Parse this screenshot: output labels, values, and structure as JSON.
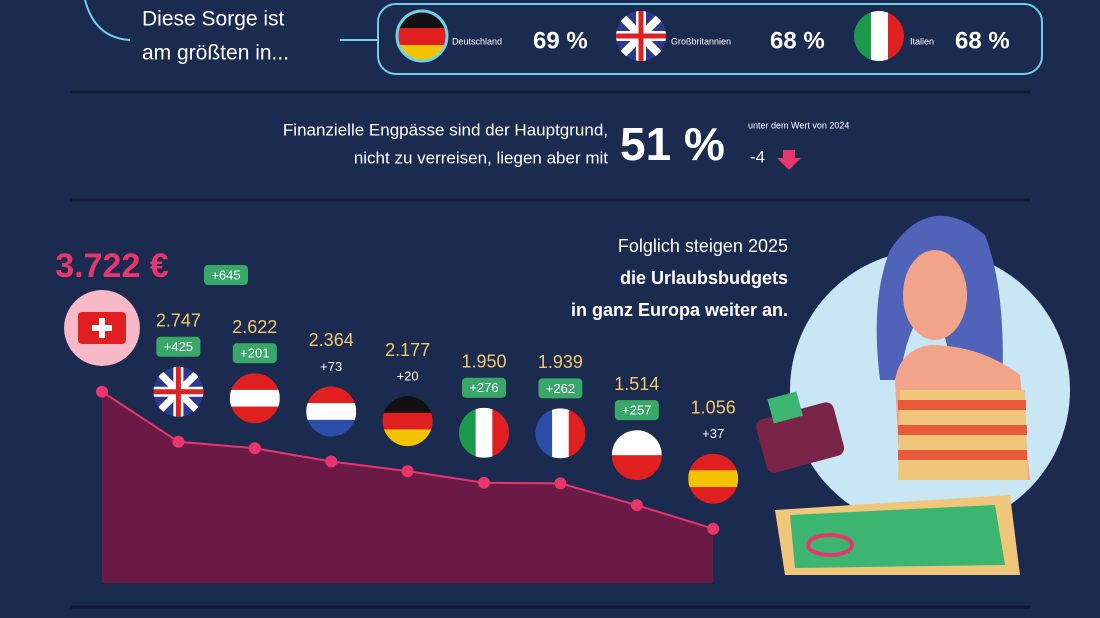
{
  "top": {
    "lead": [
      "Diese Sorge ist",
      "am größten in..."
    ],
    "countries": [
      {
        "name": "Deutschland",
        "share": "69 %"
      },
      {
        "name": "Großbritannien",
        "share": "68 %"
      },
      {
        "name": "Italien",
        "share": "68 %"
      }
    ]
  },
  "middle": {
    "lines": [
      "Finanzielle Engpässe sind der Hauptgrund,",
      "nicht zu verreisen, liegen aber mit"
    ],
    "big": "51 %",
    "note": "unter dem Wert von 2024",
    "delta": "-4"
  },
  "right_text": [
    "Folglich steigen 2025",
    "die Urlaubsbudgets",
    "in ganz Europa weiter an."
  ],
  "chart_data": {
    "type": "area",
    "color": "#e8366c",
    "values": [
      3722,
      2747,
      2622,
      2364,
      2177,
      1950,
      1939,
      1514,
      1056
    ],
    "value_labels": [
      "3.722 €",
      "2.747",
      "2.622",
      "2.364",
      "2.177",
      "1.950",
      "1.939",
      "1.514",
      "1.056"
    ],
    "changes": [
      645,
      425,
      201,
      73,
      20,
      276,
      262,
      257,
      37
    ],
    "change_labels": [
      "+645",
      "+425",
      "+201",
      "+73",
      "+20",
      "+276",
      "+262",
      "+257",
      "+37"
    ]
  }
}
